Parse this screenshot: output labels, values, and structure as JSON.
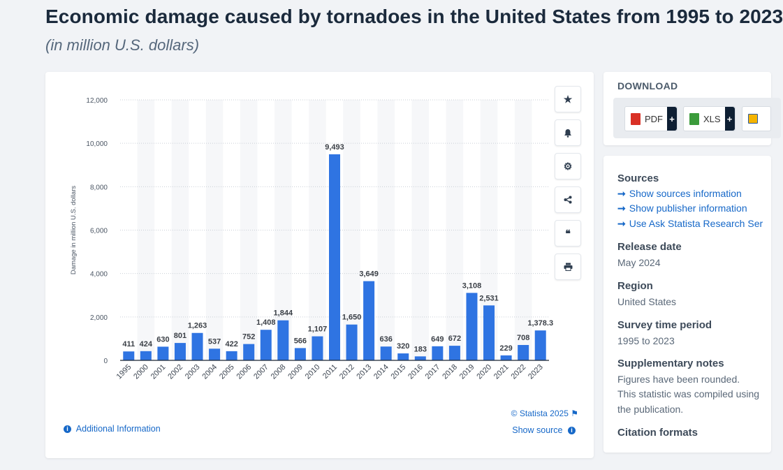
{
  "header": {
    "title": "Economic damage caused by tornadoes in the United States from 1995 to 2023",
    "subtitle": "(in million U.S. dollars)"
  },
  "chart_data": {
    "type": "bar",
    "ylabel": "Damage in million U.S. dollars",
    "xlabel": "",
    "ylim": [
      0,
      12000
    ],
    "yticks": [
      0,
      2000,
      4000,
      6000,
      8000,
      10000,
      12000
    ],
    "ytick_labels": [
      "0",
      "2,000",
      "4,000",
      "6,000",
      "8,000",
      "10,000",
      "12,000"
    ],
    "categories": [
      "1995",
      "2000",
      "2001",
      "2002",
      "2003",
      "2004",
      "2005",
      "2006",
      "2007",
      "2008",
      "2009",
      "2010",
      "2011",
      "2012",
      "2013",
      "2014",
      "2015",
      "2016",
      "2017",
      "2018",
      "2019",
      "2020",
      "2021",
      "2022",
      "2023"
    ],
    "values": [
      411,
      424,
      630,
      801,
      1263,
      537,
      422,
      752,
      1408,
      1844,
      566,
      1107,
      9493,
      1650,
      3649,
      636,
      320,
      183,
      649,
      672,
      3108,
      2531,
      229,
      708,
      1378.3
    ],
    "value_labels": [
      "411",
      "424",
      "630",
      "801",
      "1,263",
      "537",
      "422",
      "752",
      "1,408",
      "1,844",
      "566",
      "1,107",
      "9,493",
      "1,650",
      "3,649",
      "636",
      "320",
      "183",
      "649",
      "672",
      "3,108",
      "2,531",
      "229",
      "708",
      "1,378.3"
    ],
    "bar_color": "#2f74e2",
    "grid": true
  },
  "chart_footer": {
    "copyright": "© Statista 2025",
    "show_source": "Show source",
    "additional_info": "Additional Information"
  },
  "toolbar": {
    "icons": [
      "star-icon",
      "bell-icon",
      "gear-icon",
      "share-icon",
      "quote-icon",
      "print-icon"
    ]
  },
  "download": {
    "heading": "DOWNLOAD",
    "buttons": [
      {
        "label": "PDF",
        "color": "#d93025"
      },
      {
        "label": "XLS",
        "color": "#3b9b3b"
      }
    ]
  },
  "sources": {
    "heading": "Sources",
    "links": [
      "Show sources information",
      "Show publisher information",
      "Use Ask Statista Research Ser"
    ]
  },
  "release": {
    "heading": "Release date",
    "value": "May 2024"
  },
  "region": {
    "heading": "Region",
    "value": "United States"
  },
  "survey": {
    "heading": "Survey time period",
    "value": "1995 to 2023"
  },
  "notes": {
    "heading": "Supplementary notes",
    "line1": "Figures have been rounded.",
    "line2": "This statistic was compiled using",
    "line3": "the publication."
  },
  "citation": {
    "heading": "Citation formats"
  }
}
